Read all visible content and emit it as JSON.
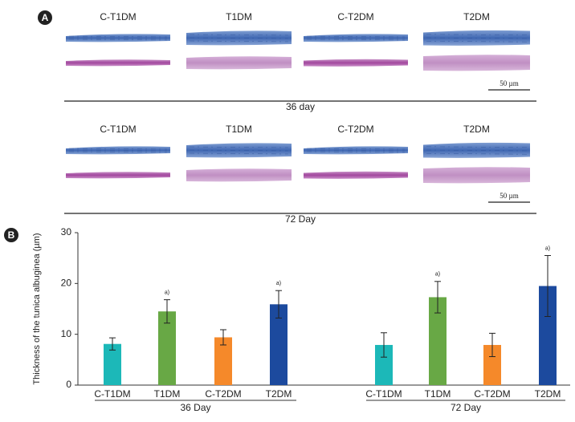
{
  "panel_a": {
    "label": "A",
    "rows": [
      {
        "columns": [
          "C-T1DM",
          "T1DM",
          "C-T2DM",
          "T2DM"
        ],
        "scale": "50 µm",
        "caption": "36 day"
      },
      {
        "columns": [
          "C-T1DM",
          "T1DM",
          "C-T2DM",
          "T2DM"
        ],
        "scale": "50 µm",
        "caption": "72 Day"
      }
    ]
  },
  "chart_data": {
    "type": "bar",
    "panel_label": "B",
    "y_label": "Thickness of the tunica albuginea (µm)",
    "categories": [
      "C-T1DM",
      "T1DM",
      "C-T2DM",
      "T2DM",
      "C-T1DM",
      "T1DM",
      "C-T2DM",
      "T2DM"
    ],
    "groups": [
      "36 Day",
      "72 Day"
    ],
    "values": [
      8.1,
      14.5,
      9.4,
      15.9,
      7.9,
      17.3,
      7.9,
      19.5
    ],
    "errors": [
      1.2,
      2.3,
      1.5,
      2.7,
      2.4,
      3.1,
      2.3,
      6.0
    ],
    "annotations": [
      null,
      "a)",
      null,
      "a)",
      null,
      "a)",
      null,
      "a)"
    ],
    "colors": [
      "#1cb8b8",
      "#68a845",
      "#f5892a",
      "#1c4a9e",
      "#1cb8b8",
      "#68a845",
      "#f5892a",
      "#1c4a9e"
    ],
    "ylim": [
      0,
      30
    ],
    "yticks": [
      0,
      10,
      20,
      30
    ]
  }
}
